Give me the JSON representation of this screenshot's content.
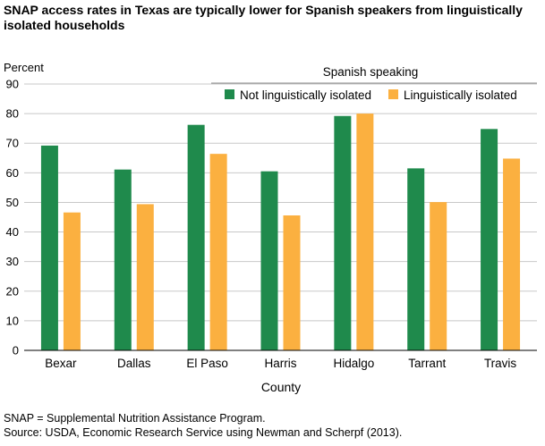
{
  "title": "SNAP access rates in Texas are typically lower for Spanish speakers from linguistically isolated households",
  "footnotes": {
    "note": "SNAP = Supplemental Nutrition Assistance Program.",
    "source": "Source: USDA, Economic Research Service using Newman and Scherpf (2013)."
  },
  "chart_data": {
    "type": "bar",
    "title": "SNAP access rates in Texas are typically lower for Spanish speakers from linguistically isolated households",
    "xlabel": "County",
    "ylabel": "Percent",
    "ylim": [
      0,
      90
    ],
    "yticks": [
      0,
      10,
      20,
      30,
      40,
      50,
      60,
      70,
      80,
      90
    ],
    "categories": [
      "Bexar",
      "Dallas",
      "El Paso",
      "Harris",
      "Hidalgo",
      "Tarrant",
      "Travis"
    ],
    "legend_title": "Spanish speaking",
    "legend_position": "top-right",
    "grid": "horizontal",
    "series": [
      {
        "name": "Not linguistically isolated",
        "color": "#1f8a4c",
        "values": [
          69.2,
          61.1,
          76.2,
          60.5,
          79.2,
          61.5,
          74.8
        ]
      },
      {
        "name": "Linguistically isolated",
        "color": "#fbb040",
        "values": [
          46.6,
          49.4,
          66.4,
          45.6,
          80.0,
          50.1,
          64.8
        ]
      }
    ]
  }
}
